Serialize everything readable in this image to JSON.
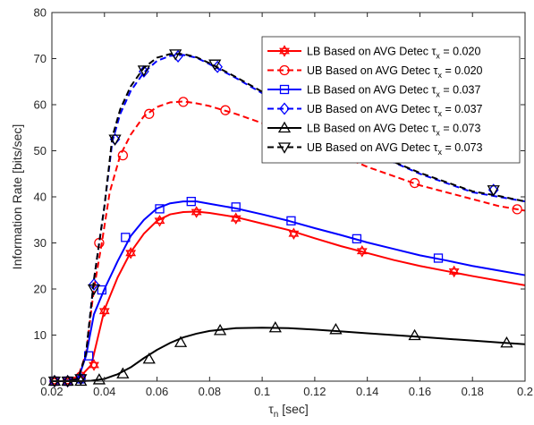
{
  "chart_data": {
    "type": "line",
    "title": "",
    "xlabel": {
      "base": "τ",
      "sub": "n",
      "rest": " [sec]"
    },
    "ylabel": "Information Rate [bits/sec]",
    "xlim": [
      0.02,
      0.2
    ],
    "ylim": [
      0,
      80
    ],
    "xticks": [
      0.02,
      0.04,
      0.06,
      0.08,
      0.1,
      0.12,
      0.14,
      0.16,
      0.18,
      0.2
    ],
    "xtick_labels": [
      "0.02",
      "0.04",
      "0.06",
      "0.08",
      "0.1",
      "0.12",
      "0.14",
      "0.16",
      "0.18",
      "0.2"
    ],
    "yticks": [
      0,
      10,
      20,
      30,
      40,
      50,
      60,
      70,
      80
    ],
    "ytick_labels": [
      "0",
      "10",
      "20",
      "30",
      "40",
      "50",
      "60",
      "70",
      "80"
    ],
    "grid": false,
    "legend_position": "top-right",
    "series": [
      {
        "name": "LB Based on AVG Detec",
        "tau_label": "= 0.020",
        "color": "#ff0000",
        "dash": "solid",
        "marker": "hexagram",
        "x": [
          0.02,
          0.025,
          0.03,
          0.035,
          0.04,
          0.045,
          0.05,
          0.055,
          0.06,
          0.065,
          0.07,
          0.075,
          0.08,
          0.09,
          0.1,
          0.11,
          0.12,
          0.13,
          0.14,
          0.15,
          0.16,
          0.17,
          0.18,
          0.19,
          0.2
        ],
        "y": [
          0,
          0,
          0.5,
          3.5,
          15.5,
          22.5,
          28,
          32,
          34.8,
          36.2,
          36.7,
          36.8,
          36.5,
          35.6,
          34.2,
          32.8,
          31,
          29.3,
          27.8,
          26.3,
          25,
          23.9,
          22.8,
          21.8,
          20.8
        ],
        "marker_x": [
          0.021,
          0.026,
          0.031,
          0.036,
          0.04,
          0.05,
          0.061,
          0.075,
          0.09,
          0.112,
          0.138,
          0.173
        ],
        "marker_y": [
          0,
          0,
          0.5,
          3.5,
          15.2,
          27.8,
          34.8,
          36.7,
          35.3,
          32,
          28.2,
          23.8
        ]
      },
      {
        "name": "UB Based on AVG Detec",
        "tau_label": "= 0.020",
        "color": "#ff0000",
        "dash": "dashed",
        "marker": "circle",
        "x": [
          0.02,
          0.025,
          0.03,
          0.033,
          0.036,
          0.039,
          0.042,
          0.046,
          0.05,
          0.055,
          0.06,
          0.065,
          0.07,
          0.075,
          0.08,
          0.09,
          0.1,
          0.11,
          0.12,
          0.13,
          0.14,
          0.15,
          0.16,
          0.17,
          0.18,
          0.19,
          0.2
        ],
        "y": [
          0,
          0,
          1,
          6,
          20,
          30,
          41,
          49,
          53.5,
          57.5,
          59.5,
          60.5,
          60.7,
          60.3,
          59.7,
          58,
          56,
          54,
          51.5,
          49,
          46.5,
          44.5,
          42.5,
          41,
          39.5,
          38,
          37
        ],
        "marker_x": [
          0.021,
          0.026,
          0.031,
          0.038,
          0.047,
          0.057,
          0.07,
          0.086,
          0.158,
          0.197
        ],
        "marker_y": [
          0,
          0,
          1,
          30,
          49,
          58,
          60.6,
          58.8,
          43,
          37.3
        ]
      },
      {
        "name": "LB Based on AVG Detec",
        "tau_label": "= 0.037",
        "color": "#0000ff",
        "dash": "solid",
        "marker": "square",
        "x": [
          0.02,
          0.025,
          0.03,
          0.033,
          0.036,
          0.04,
          0.045,
          0.05,
          0.055,
          0.06,
          0.065,
          0.07,
          0.075,
          0.08,
          0.09,
          0.1,
          0.11,
          0.12,
          0.13,
          0.14,
          0.15,
          0.16,
          0.17,
          0.18,
          0.19,
          0.2
        ],
        "y": [
          0,
          0,
          0.5,
          5.5,
          14.5,
          20,
          26,
          31.5,
          35,
          37.5,
          38.6,
          39,
          39,
          38.5,
          37.5,
          36.2,
          34.8,
          33.2,
          31.7,
          30.1,
          28.7,
          27.3,
          26.2,
          25,
          24,
          23
        ],
        "marker_x": [
          0.021,
          0.026,
          0.031,
          0.034,
          0.039,
          0.048,
          0.061,
          0.073,
          0.09,
          0.111,
          0.136,
          0.167
        ],
        "marker_y": [
          0,
          0,
          0.5,
          5.5,
          19.8,
          31.2,
          37.4,
          39,
          37.8,
          34.8,
          30.9,
          26.7
        ]
      },
      {
        "name": "UB Based on AVG Detec",
        "tau_label": "= 0.037",
        "color": "#0000ff",
        "dash": "dashed",
        "marker": "diamond",
        "x": [
          0.02,
          0.025,
          0.03,
          0.033,
          0.036,
          0.04,
          0.043,
          0.046,
          0.05,
          0.055,
          0.06,
          0.065,
          0.07,
          0.075,
          0.08,
          0.09,
          0.1,
          0.11,
          0.12,
          0.13,
          0.14,
          0.15,
          0.16,
          0.17,
          0.18,
          0.19,
          0.2
        ],
        "y": [
          0,
          0,
          0.5,
          6,
          22,
          38,
          52,
          58,
          63,
          67,
          69.5,
          70.6,
          70.8,
          70.2,
          68.8,
          65.8,
          62.5,
          59.5,
          56,
          53,
          50,
          47.5,
          45,
          43,
          41,
          40,
          39
        ],
        "marker_x": [
          0.021,
          0.026,
          0.031,
          0.036,
          0.044,
          0.055,
          0.068,
          0.083,
          0.105,
          0.188
        ],
        "marker_y": [
          0,
          0,
          0.5,
          21,
          52.5,
          67.2,
          70.5,
          68.2,
          62.3,
          41.5
        ]
      },
      {
        "name": "LB Based on AVG Detec",
        "tau_label": "= 0.073",
        "color": "#000000",
        "dash": "solid",
        "marker": "triangle-up",
        "x": [
          0.02,
          0.025,
          0.03,
          0.035,
          0.04,
          0.045,
          0.05,
          0.055,
          0.06,
          0.065,
          0.07,
          0.075,
          0.08,
          0.09,
          0.1,
          0.11,
          0.12,
          0.13,
          0.14,
          0.15,
          0.16,
          0.17,
          0.18,
          0.19,
          0.2
        ],
        "y": [
          0,
          0,
          0,
          0.1,
          0.5,
          1.5,
          3,
          5,
          6.8,
          8.3,
          9.5,
          10.3,
          10.9,
          11.5,
          11.6,
          11.5,
          11.2,
          10.8,
          10.4,
          10,
          9.6,
          9.2,
          8.8,
          8.4,
          8
        ],
        "marker_x": [
          0.021,
          0.026,
          0.031,
          0.038,
          0.047,
          0.057,
          0.069,
          0.084,
          0.105,
          0.128,
          0.158,
          0.193
        ],
        "marker_y": [
          0,
          0,
          0,
          0.3,
          1.6,
          4.8,
          8.4,
          11,
          11.6,
          11.2,
          9.9,
          8.3
        ]
      },
      {
        "name": "UB Based on AVG Detec",
        "tau_label": "= 0.073",
        "color": "#000000",
        "dash": "dashed",
        "marker": "triangle-down",
        "x": [
          0.02,
          0.025,
          0.03,
          0.033,
          0.036,
          0.04,
          0.043,
          0.046,
          0.05,
          0.055,
          0.06,
          0.065,
          0.07,
          0.075,
          0.08,
          0.09,
          0.1,
          0.11,
          0.12,
          0.13,
          0.14,
          0.15,
          0.16,
          0.17,
          0.18,
          0.19,
          0.2
        ],
        "y": [
          0,
          0,
          0.5,
          6,
          22,
          38,
          53,
          59,
          64,
          68,
          70.2,
          71,
          71,
          70.3,
          69,
          66,
          62.8,
          59.8,
          56.3,
          53.2,
          50.2,
          47.6,
          45.2,
          43.2,
          41.2,
          40.2,
          39
        ],
        "marker_x": [
          0.021,
          0.026,
          0.031,
          0.036,
          0.044,
          0.055,
          0.067,
          0.082,
          0.104,
          0.188
        ],
        "marker_y": [
          0,
          0,
          0.5,
          20,
          52.5,
          67.5,
          71,
          68.8,
          62.5,
          41.5
        ]
      }
    ]
  }
}
